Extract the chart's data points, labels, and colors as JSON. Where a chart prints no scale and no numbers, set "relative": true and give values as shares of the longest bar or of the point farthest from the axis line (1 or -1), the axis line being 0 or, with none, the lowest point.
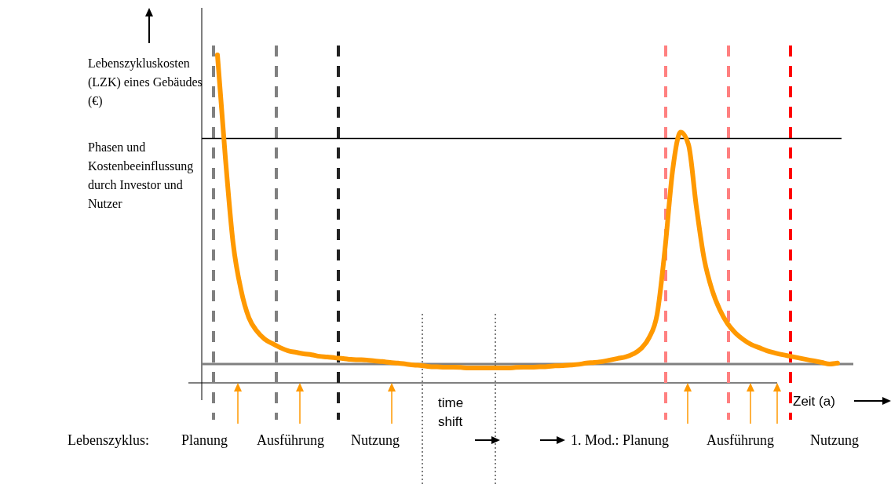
{
  "chart_data": {
    "type": "line",
    "relative": true,
    "ylabel": "Lebenszykluskosten (LZK) eines Gebäudes (€)",
    "xlabel": "Zeit (a)",
    "categories": [
      null,
      null,
      null,
      null,
      null,
      null,
      null,
      null,
      null,
      null,
      null,
      null,
      null,
      null,
      null,
      null,
      null,
      null,
      null,
      null,
      null,
      null,
      null,
      null,
      null,
      null,
      null,
      null,
      null,
      null,
      null,
      null,
      null,
      null,
      null,
      null,
      null,
      null,
      null,
      null,
      null,
      null,
      null,
      null,
      null,
      null,
      null,
      null,
      null,
      null,
      null,
      null,
      null,
      null,
      null,
      null,
      null,
      null,
      null,
      null,
      null,
      null,
      null,
      null,
      null,
      null,
      null,
      null,
      null,
      null,
      null,
      null,
      null,
      null,
      null,
      null,
      null,
      null,
      null,
      null
    ],
    "series": [
      {
        "color": "#ff9900",
        "values": [
          1.0,
          0.67,
          0.39,
          0.24,
          0.15,
          0.107,
          0.081,
          0.066,
          0.053,
          0.043,
          0.038,
          0.033,
          0.03,
          0.025,
          0.023,
          0.02,
          0.018,
          0.015,
          0.014,
          0.013,
          0.01,
          0.008,
          0.005,
          0.003,
          0,
          -0.003,
          -0.005,
          -0.008,
          -0.009,
          -0.01,
          -0.01,
          -0.011,
          -0.013,
          -0.013,
          -0.013,
          -0.013,
          -0.013,
          -0.013,
          -0.011,
          -0.01,
          -0.01,
          -0.009,
          -0.008,
          -0.006,
          -0.005,
          -0.003,
          -0.001,
          0.003,
          0.005,
          0.008,
          0.013,
          0.018,
          0.023,
          0.033,
          0.051,
          0.086,
          0.16,
          0.37,
          0.63,
          0.75,
          0.71,
          0.51,
          0.34,
          0.24,
          0.175,
          0.13,
          0.1,
          0.079,
          0.063,
          0.053,
          0.043,
          0.036,
          0.03,
          0.025,
          0.02,
          0.015,
          0.01,
          0.005,
          0,
          0.003
        ]
      }
    ],
    "marker": "none",
    "line_style": "solid",
    "ref_lines": [
      {
        "axis": "y",
        "value": 0.73,
        "color": "#000000",
        "line_style": "solid"
      }
    ],
    "annotations": [
      "Phasen und Kostenbeeinflussung durch Investor und Nutzer",
      "Lebenszyklus:",
      "Planung",
      "Ausführung",
      "Nutzung",
      "time shift",
      "1. Mod.: Planung",
      "Ausführung",
      "Nutzung"
    ]
  }
}
